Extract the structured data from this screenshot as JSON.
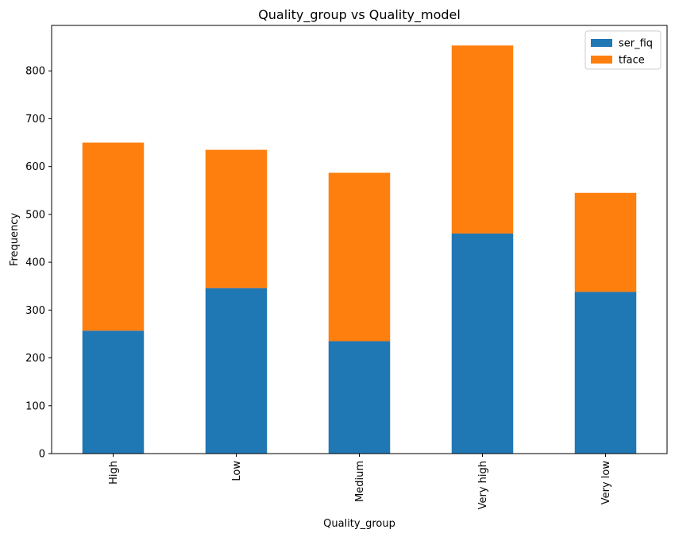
{
  "chart_data": {
    "type": "bar",
    "stacked": true,
    "title": "Quality_group vs Quality_model",
    "xlabel": "Quality_group",
    "ylabel": "Frequency",
    "categories": [
      "High",
      "Low",
      "Medium",
      "Very high",
      "Very low"
    ],
    "series": [
      {
        "name": "ser_fiq",
        "color": "#1f77b4",
        "values": [
          257,
          346,
          235,
          460,
          338
        ]
      },
      {
        "name": "tface",
        "color": "#ff7f0e",
        "values": [
          393,
          289,
          352,
          393,
          207
        ]
      }
    ],
    "ylim": [
      0,
      895
    ],
    "yticks": [
      0,
      100,
      200,
      300,
      400,
      500,
      600,
      700,
      800
    ],
    "legend": "top-right",
    "grid": false
  }
}
